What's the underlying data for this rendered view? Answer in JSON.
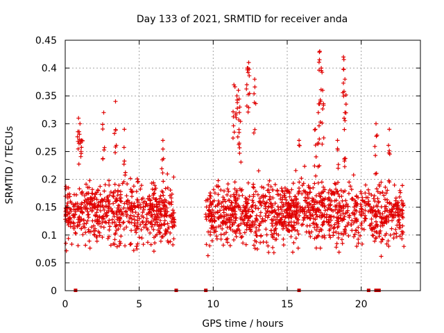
{
  "chart_data": {
    "type": "scatter",
    "title": "Day 133 of 2021, SRMTID for receiver anda",
    "xlabel": "GPS time / hours",
    "ylabel": "SRMTID / TECUs",
    "xlim": [
      0,
      24
    ],
    "ylim": [
      0,
      0.45
    ],
    "x_ticks": [
      0,
      5,
      10,
      15,
      20
    ],
    "x_tick_labels": [
      "0",
      "5",
      "10",
      "15",
      "20"
    ],
    "y_ticks": [
      0,
      0.05,
      0.1,
      0.15,
      0.2,
      0.25,
      0.3,
      0.35,
      0.4,
      0.45
    ],
    "y_tick_labels": [
      "0",
      "0.05",
      "0.1",
      "0.15",
      "0.2",
      "0.25",
      "0.3",
      "0.35",
      "0.4",
      "0.45"
    ],
    "grid": true,
    "marker": "+",
    "series_color": "#e00000",
    "data_segments": [
      {
        "x_start": 0.0,
        "x_end": 7.4,
        "y_min": 0.02,
        "y_max": 0.34,
        "y_center": 0.14
      },
      {
        "x_start": 9.5,
        "x_end": 22.9,
        "y_min": 0.03,
        "y_max": 0.43,
        "y_center": 0.14
      }
    ],
    "peaks": [
      {
        "x": 0.9,
        "y": 0.31
      },
      {
        "x": 1.0,
        "y": 0.3
      },
      {
        "x": 1.1,
        "y": 0.27
      },
      {
        "x": 2.6,
        "y": 0.32
      },
      {
        "x": 3.4,
        "y": 0.34
      },
      {
        "x": 4.0,
        "y": 0.29
      },
      {
        "x": 6.6,
        "y": 0.27
      },
      {
        "x": 11.4,
        "y": 0.37
      },
      {
        "x": 11.6,
        "y": 0.35
      },
      {
        "x": 11.7,
        "y": 0.36
      },
      {
        "x": 11.8,
        "y": 0.33
      },
      {
        "x": 12.3,
        "y": 0.4
      },
      {
        "x": 12.4,
        "y": 0.41
      },
      {
        "x": 12.8,
        "y": 0.38
      },
      {
        "x": 15.8,
        "y": 0.27
      },
      {
        "x": 16.9,
        "y": 0.29
      },
      {
        "x": 17.1,
        "y": 0.32
      },
      {
        "x": 17.2,
        "y": 0.43
      },
      {
        "x": 17.3,
        "y": 0.4
      },
      {
        "x": 17.4,
        "y": 0.36
      },
      {
        "x": 18.4,
        "y": 0.27
      },
      {
        "x": 18.8,
        "y": 0.42
      },
      {
        "x": 18.9,
        "y": 0.38
      },
      {
        "x": 18.9,
        "y": 0.32
      },
      {
        "x": 21.0,
        "y": 0.3
      },
      {
        "x": 21.9,
        "y": 0.29
      }
    ],
    "gap_markers_x": [
      0.7,
      7.5,
      9.5,
      15.8,
      20.5,
      21.0,
      21.2
    ]
  }
}
